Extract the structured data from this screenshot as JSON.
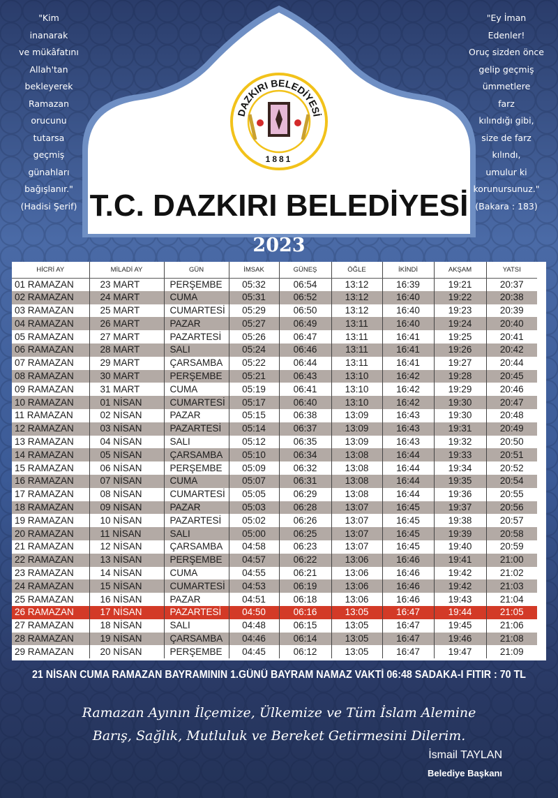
{
  "colors": {
    "background": "#34508a",
    "highlight": "#d33a27",
    "alt_row": "#b3aaa5",
    "logo_ring": "#f2c21a"
  },
  "left_quote": [
    "\"Kim",
    "inanarak",
    "ve mükâfatını",
    "Allah'tan",
    "bekleyerek",
    "Ramazan",
    "orucunu",
    "tutarsa",
    "geçmiş",
    "günahları",
    "bağışlanır.\"",
    "(Hadisi Şerif)"
  ],
  "right_quote": [
    "\"Ey İman",
    "Edenler!",
    "Oruç sizden önce",
    "gelip geçmiş",
    "ümmetlere",
    "farz",
    "kılındığı gibi,",
    "size de farz",
    "kılındı,",
    "umulur ki",
    "korunursunuz.\"",
    "(Bakara : 183)"
  ],
  "logo": {
    "name": "DAZKIRI BELEDİYESİ",
    "year": "1881"
  },
  "title": "T.C. DAZKIRI BELEDİYESİ",
  "year": "2023",
  "table": {
    "headers": [
      "HİCRİ AY",
      "MİLADİ AY",
      "GÜN",
      "İMSAK",
      "GÜNEŞ",
      "ÖĞLE",
      "İKİNDİ",
      "AKŞAM",
      "YATSI"
    ],
    "highlight_row": 25,
    "rows": [
      [
        "01 RAMAZAN",
        "23 MART",
        "PERŞEMBE",
        "05:32",
        "06:54",
        "13:12",
        "16:39",
        "19:21",
        "20:37"
      ],
      [
        "02 RAMAZAN",
        "24 MART",
        "CUMA",
        "05:31",
        "06:52",
        "13:12",
        "16:40",
        "19:22",
        "20:38"
      ],
      [
        "03 RAMAZAN",
        "25 MART",
        "CUMARTESİ",
        "05:29",
        "06:50",
        "13:12",
        "16:40",
        "19:23",
        "20:39"
      ],
      [
        "04 RAMAZAN",
        "26 MART",
        "PAZAR",
        "05:27",
        "06:49",
        "13:11",
        "16:40",
        "19:24",
        "20:40"
      ],
      [
        "05 RAMAZAN",
        "27 MART",
        "PAZARTESİ",
        "05:26",
        "06:47",
        "13:11",
        "16:41",
        "19:25",
        "20:41"
      ],
      [
        "06 RAMAZAN",
        "28 MART",
        "SALI",
        "05:24",
        "06:46",
        "13:11",
        "16:41",
        "19:26",
        "20:42"
      ],
      [
        "07 RAMAZAN",
        "29 MART",
        "ÇARSAMBA",
        "05:22",
        "06:44",
        "13:11",
        "16:41",
        "19:27",
        "20:44"
      ],
      [
        "08 RAMAZAN",
        "30 MART",
        "PERŞEMBE",
        "05:21",
        "06:43",
        "13:10",
        "16:42",
        "19:28",
        "20:45"
      ],
      [
        "09 RAMAZAN",
        "31 MART",
        "CUMA",
        "05:19",
        "06:41",
        "13:10",
        "16:42",
        "19:29",
        "20:46"
      ],
      [
        "10 RAMAZAN",
        "01 NİSAN",
        "CUMARTESİ",
        "05:17",
        "06:40",
        "13:10",
        "16:42",
        "19:30",
        "20:47"
      ],
      [
        "11 RAMAZAN",
        "02 NİSAN",
        "PAZAR",
        "05:15",
        "06:38",
        "13:09",
        "16:43",
        "19:30",
        "20:48"
      ],
      [
        "12 RAMAZAN",
        "03 NİSAN",
        "PAZARTESİ",
        "05:14",
        "06:37",
        "13:09",
        "16:43",
        "19:31",
        "20:49"
      ],
      [
        "13 RAMAZAN",
        "04 NİSAN",
        "SALI",
        "05:12",
        "06:35",
        "13:09",
        "16:43",
        "19:32",
        "20:50"
      ],
      [
        "14 RAMAZAN",
        "05 NİSAN",
        "ÇARSAMBA",
        "05:10",
        "06:34",
        "13:08",
        "16:44",
        "19:33",
        "20:51"
      ],
      [
        "15 RAMAZAN",
        "06 NİSAN",
        "PERŞEMBE",
        "05:09",
        "06:32",
        "13:08",
        "16:44",
        "19:34",
        "20:52"
      ],
      [
        "16 RAMAZAN",
        "07 NİSAN",
        "CUMA",
        "05:07",
        "06:31",
        "13:08",
        "16:44",
        "19:35",
        "20:54"
      ],
      [
        "17 RAMAZAN",
        "08 NİSAN",
        "CUMARTESİ",
        "05:05",
        "06:29",
        "13:08",
        "16:44",
        "19:36",
        "20:55"
      ],
      [
        "18 RAMAZAN",
        "09 NİSAN",
        "PAZAR",
        "05:03",
        "06:28",
        "13:07",
        "16:45",
        "19:37",
        "20:56"
      ],
      [
        "19 RAMAZAN",
        "10 NİSAN",
        "PAZARTESİ",
        "05:02",
        "06:26",
        "13:07",
        "16:45",
        "19:38",
        "20:57"
      ],
      [
        "20 RAMAZAN",
        "11 NİSAN",
        "SALI",
        "05:00",
        "06:25",
        "13:07",
        "16:45",
        "19:39",
        "20:58"
      ],
      [
        "21 RAMAZAN",
        "12 NİSAN",
        "ÇARSAMBA",
        "04:58",
        "06:23",
        "13:07",
        "16:45",
        "19:40",
        "20:59"
      ],
      [
        "22 RAMAZAN",
        "13 NİSAN",
        "PERŞEMBE",
        "04:57",
        "06:22",
        "13:06",
        "16:46",
        "19:41",
        "21:00"
      ],
      [
        "23 RAMAZAN",
        "14 NİSAN",
        "CUMA",
        "04:55",
        "06:21",
        "13:06",
        "16:46",
        "19:42",
        "21:02"
      ],
      [
        "24 RAMAZAN",
        "15 NİSAN",
        "CUMARTESİ",
        "04:53",
        "06:19",
        "13:06",
        "16:46",
        "19:42",
        "21:03"
      ],
      [
        "25 RAMAZAN",
        "16 NİSAN",
        "PAZAR",
        "04:51",
        "06:18",
        "13:06",
        "16:46",
        "19:43",
        "21:04"
      ],
      [
        "26 RAMAZAN",
        "17 NİSAN",
        "PAZARTESİ",
        "04:50",
        "06:16",
        "13:05",
        "16:47",
        "19:44",
        "21:05"
      ],
      [
        "27 RAMAZAN",
        "18 NİSAN",
        "SALI",
        "04:48",
        "06:15",
        "13:05",
        "16:47",
        "19:45",
        "21:06"
      ],
      [
        "28 RAMAZAN",
        "19 NİSAN",
        "ÇARSAMBA",
        "04:46",
        "06:14",
        "13:05",
        "16:47",
        "19:46",
        "21:08"
      ],
      [
        "29 RAMAZAN",
        "20 NİSAN",
        "PERŞEMBE",
        "04:45",
        "06:12",
        "13:05",
        "16:47",
        "19:47",
        "21:09"
      ]
    ]
  },
  "note": "21 NİSAN CUMA RAMAZAN BAYRAMININ 1.GÜNÜ BAYRAM NAMAZ VAKTİ 06:48 SADAKA-I FITIR : 70 TL",
  "blessing": {
    "line1": "Ramazan Ayının İlçemize, Ülkemize ve Tüm İslam Alemine",
    "line2": "Barış, Sağlık, Mutluluk ve Bereket Getirmesini Dilerim."
  },
  "signature": {
    "name": "İsmail TAYLAN",
    "role": "Belediye Başkanı"
  }
}
